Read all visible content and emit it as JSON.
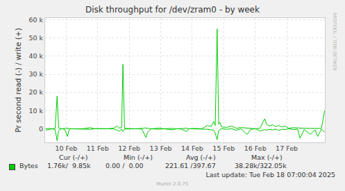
{
  "chart_data": {
    "type": "line",
    "title": "Disk throughput for /dev/zram0 - by week",
    "y_label": "Pr second read (-) / write (+)",
    "x": [
      9.35,
      9.45,
      9.55,
      9.65,
      9.71,
      9.76,
      9.85,
      9.95,
      10.04,
      10.1,
      10.3,
      10.5,
      10.77,
      10.9,
      11.1,
      11.3,
      11.5,
      11.61,
      11.68,
      11.76,
      11.8,
      11.85,
      12.0,
      12.2,
      12.4,
      12.53,
      12.58,
      12.7,
      12.95,
      13.1,
      13.35,
      13.5,
      13.65,
      13.82,
      13.9,
      14.1,
      14.3,
      14.48,
      14.6,
      14.68,
      14.73,
      14.79,
      14.84,
      14.88,
      14.93,
      15.1,
      15.25,
      15.4,
      15.55,
      15.74,
      15.85,
      16.0,
      16.15,
      16.3,
      16.36,
      16.45,
      16.55,
      16.65,
      16.75,
      16.85,
      16.95,
      17.05,
      17.2,
      17.35,
      17.42,
      17.55,
      17.75,
      17.9,
      17.98,
      18.1,
      18.2
    ],
    "xlim": [
      9.33,
      18.21
    ],
    "xticks": [
      {
        "value": 10,
        "label": "10 Feb"
      },
      {
        "value": 11,
        "label": "11 Feb"
      },
      {
        "value": 12,
        "label": "12 Feb"
      },
      {
        "value": 13,
        "label": "13 Feb"
      },
      {
        "value": 14,
        "label": "14 Feb"
      },
      {
        "value": 15,
        "label": "15 Feb"
      },
      {
        "value": 16,
        "label": "16 Feb"
      },
      {
        "value": 17,
        "label": "17 Feb"
      }
    ],
    "ylim": [
      -7500,
      61000
    ],
    "yticks": [
      0,
      {
        "value": 10000,
        "label": "10 k"
      },
      {
        "value": 20000,
        "label": "20 k"
      },
      {
        "value": 30000,
        "label": "30 k"
      },
      {
        "value": 40000,
        "label": "40 k"
      },
      {
        "value": 50000,
        "label": "50 k"
      },
      {
        "value": 60000,
        "label": "60 k"
      }
    ],
    "grid": true,
    "series": [
      {
        "name": "Bytes",
        "color": "#00cc00",
        "values": [
          0,
          200,
          0,
          300,
          18000,
          500,
          0,
          200,
          300,
          0,
          100,
          0,
          600,
          0,
          100,
          0,
          300,
          1500,
          400,
          800,
          35500,
          300,
          100,
          0,
          200,
          500,
          200,
          0,
          400,
          0,
          200,
          0,
          100,
          300,
          0,
          200,
          0,
          1800,
          1200,
          4000,
          1800,
          55000,
          2500,
          3500,
          1000,
          800,
          1500,
          300,
          700,
          400,
          200,
          0,
          300,
          5500,
          2500,
          1500,
          2200,
          1200,
          1800,
          1000,
          1500,
          300,
          600,
          400,
          200,
          300,
          200,
          100,
          300,
          200,
          9850
        ]
      },
      {
        "name": "Bytes",
        "color": "#00cc00",
        "values": [
          -800,
          -300,
          0,
          -500,
          -6500,
          -1000,
          0,
          -300,
          -4200,
          0,
          0,
          -200,
          -300,
          0,
          0,
          -100,
          0,
          -800,
          -1200,
          -300,
          -1500,
          -200,
          0,
          0,
          -200,
          -4800,
          -2000,
          0,
          -300,
          0,
          -600,
          0,
          -200,
          -1500,
          0,
          0,
          -200,
          -300,
          -500,
          -800,
          -2500,
          -6000,
          -1000,
          -500,
          0,
          -300,
          0,
          -800,
          0,
          -3200,
          -400,
          0,
          -1200,
          -500,
          -800,
          -300,
          -600,
          -200,
          -900,
          -300,
          -500,
          0,
          -400,
          -300,
          -5200,
          -500,
          -3000,
          -600,
          -4200,
          -300,
          -1760
        ]
      }
    ],
    "legend_table": {
      "columns": [
        "Cur (-/+)",
        "Min (-/+)",
        "Avg (-/+)",
        "Max (-/+)"
      ],
      "cells": [
        "1.76k/  9.85k",
        "0.00 /  0.00",
        "221.61 /397.67",
        "38.28k/322.05k"
      ]
    },
    "last_update": "Last update: Tue Feb 18 07:00:04 2025",
    "footer": "Munin 2.0.75",
    "watermark": "RRDTOOL / TOBI OETIKER"
  }
}
